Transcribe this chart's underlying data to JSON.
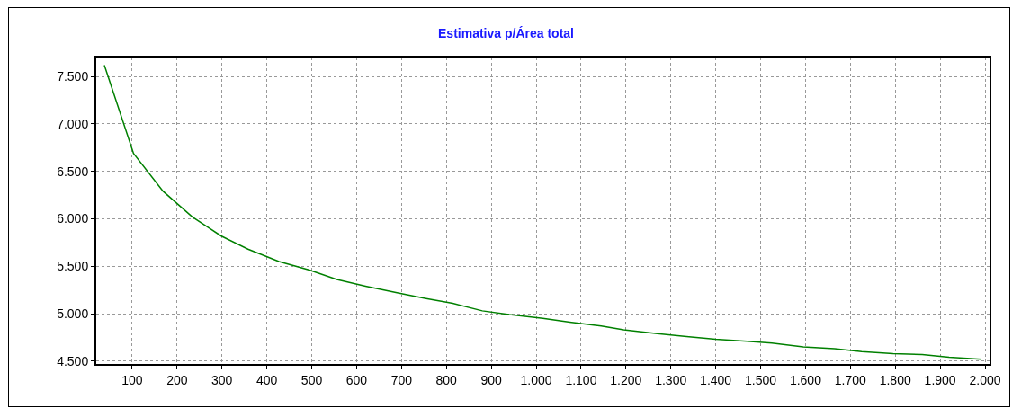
{
  "chart_data": {
    "type": "line",
    "title": "Estimativa p/Área total",
    "x": [
      38,
      103,
      169,
      234,
      298,
      358,
      427,
      495,
      556,
      620,
      690,
      755,
      814,
      880,
      940,
      1015,
      1075,
      1145,
      1195,
      1270,
      1335,
      1400,
      1470,
      1525,
      1595,
      1665,
      1725,
      1795,
      1860,
      1920,
      1992
    ],
    "series": [
      {
        "color": "#008000",
        "values": [
          7620,
          6690,
          6290,
          6020,
          5820,
          5680,
          5550,
          5460,
          5360,
          5290,
          5220,
          5160,
          5110,
          5030,
          4990,
          4950,
          4910,
          4870,
          4830,
          4790,
          4760,
          4730,
          4710,
          4690,
          4650,
          4630,
          4600,
          4580,
          4570,
          4540,
          4520
        ]
      }
    ],
    "xlim": [
      20,
      2010
    ],
    "ylim": [
      4470,
      7700
    ],
    "xticks": [
      100,
      200,
      300,
      400,
      500,
      600,
      700,
      800,
      900,
      {
        "value": 1000,
        "label": "1.000"
      },
      {
        "value": 1100,
        "label": "1.100"
      },
      {
        "value": 1200,
        "label": "1.200"
      },
      {
        "value": 1300,
        "label": "1.300"
      },
      {
        "value": 1400,
        "label": "1.400"
      },
      {
        "value": 1500,
        "label": "1.500"
      },
      {
        "value": 1600,
        "label": "1.600"
      },
      {
        "value": 1700,
        "label": "1.700"
      },
      {
        "value": 1800,
        "label": "1.800"
      },
      {
        "value": 1900,
        "label": "1.900"
      },
      {
        "value": 2000,
        "label": "2.000"
      }
    ],
    "yticks": [
      {
        "value": 4500,
        "label": "4.500"
      },
      {
        "value": 5000,
        "label": "5.000"
      },
      {
        "value": 5500,
        "label": "5.500"
      },
      {
        "value": 6000,
        "label": "6.000"
      },
      {
        "value": 6500,
        "label": "6.500"
      },
      {
        "value": 7000,
        "label": "7.000"
      },
      {
        "value": 7500,
        "label": "7.500"
      }
    ],
    "grid": true,
    "marker": "none",
    "line_style": "solid"
  }
}
